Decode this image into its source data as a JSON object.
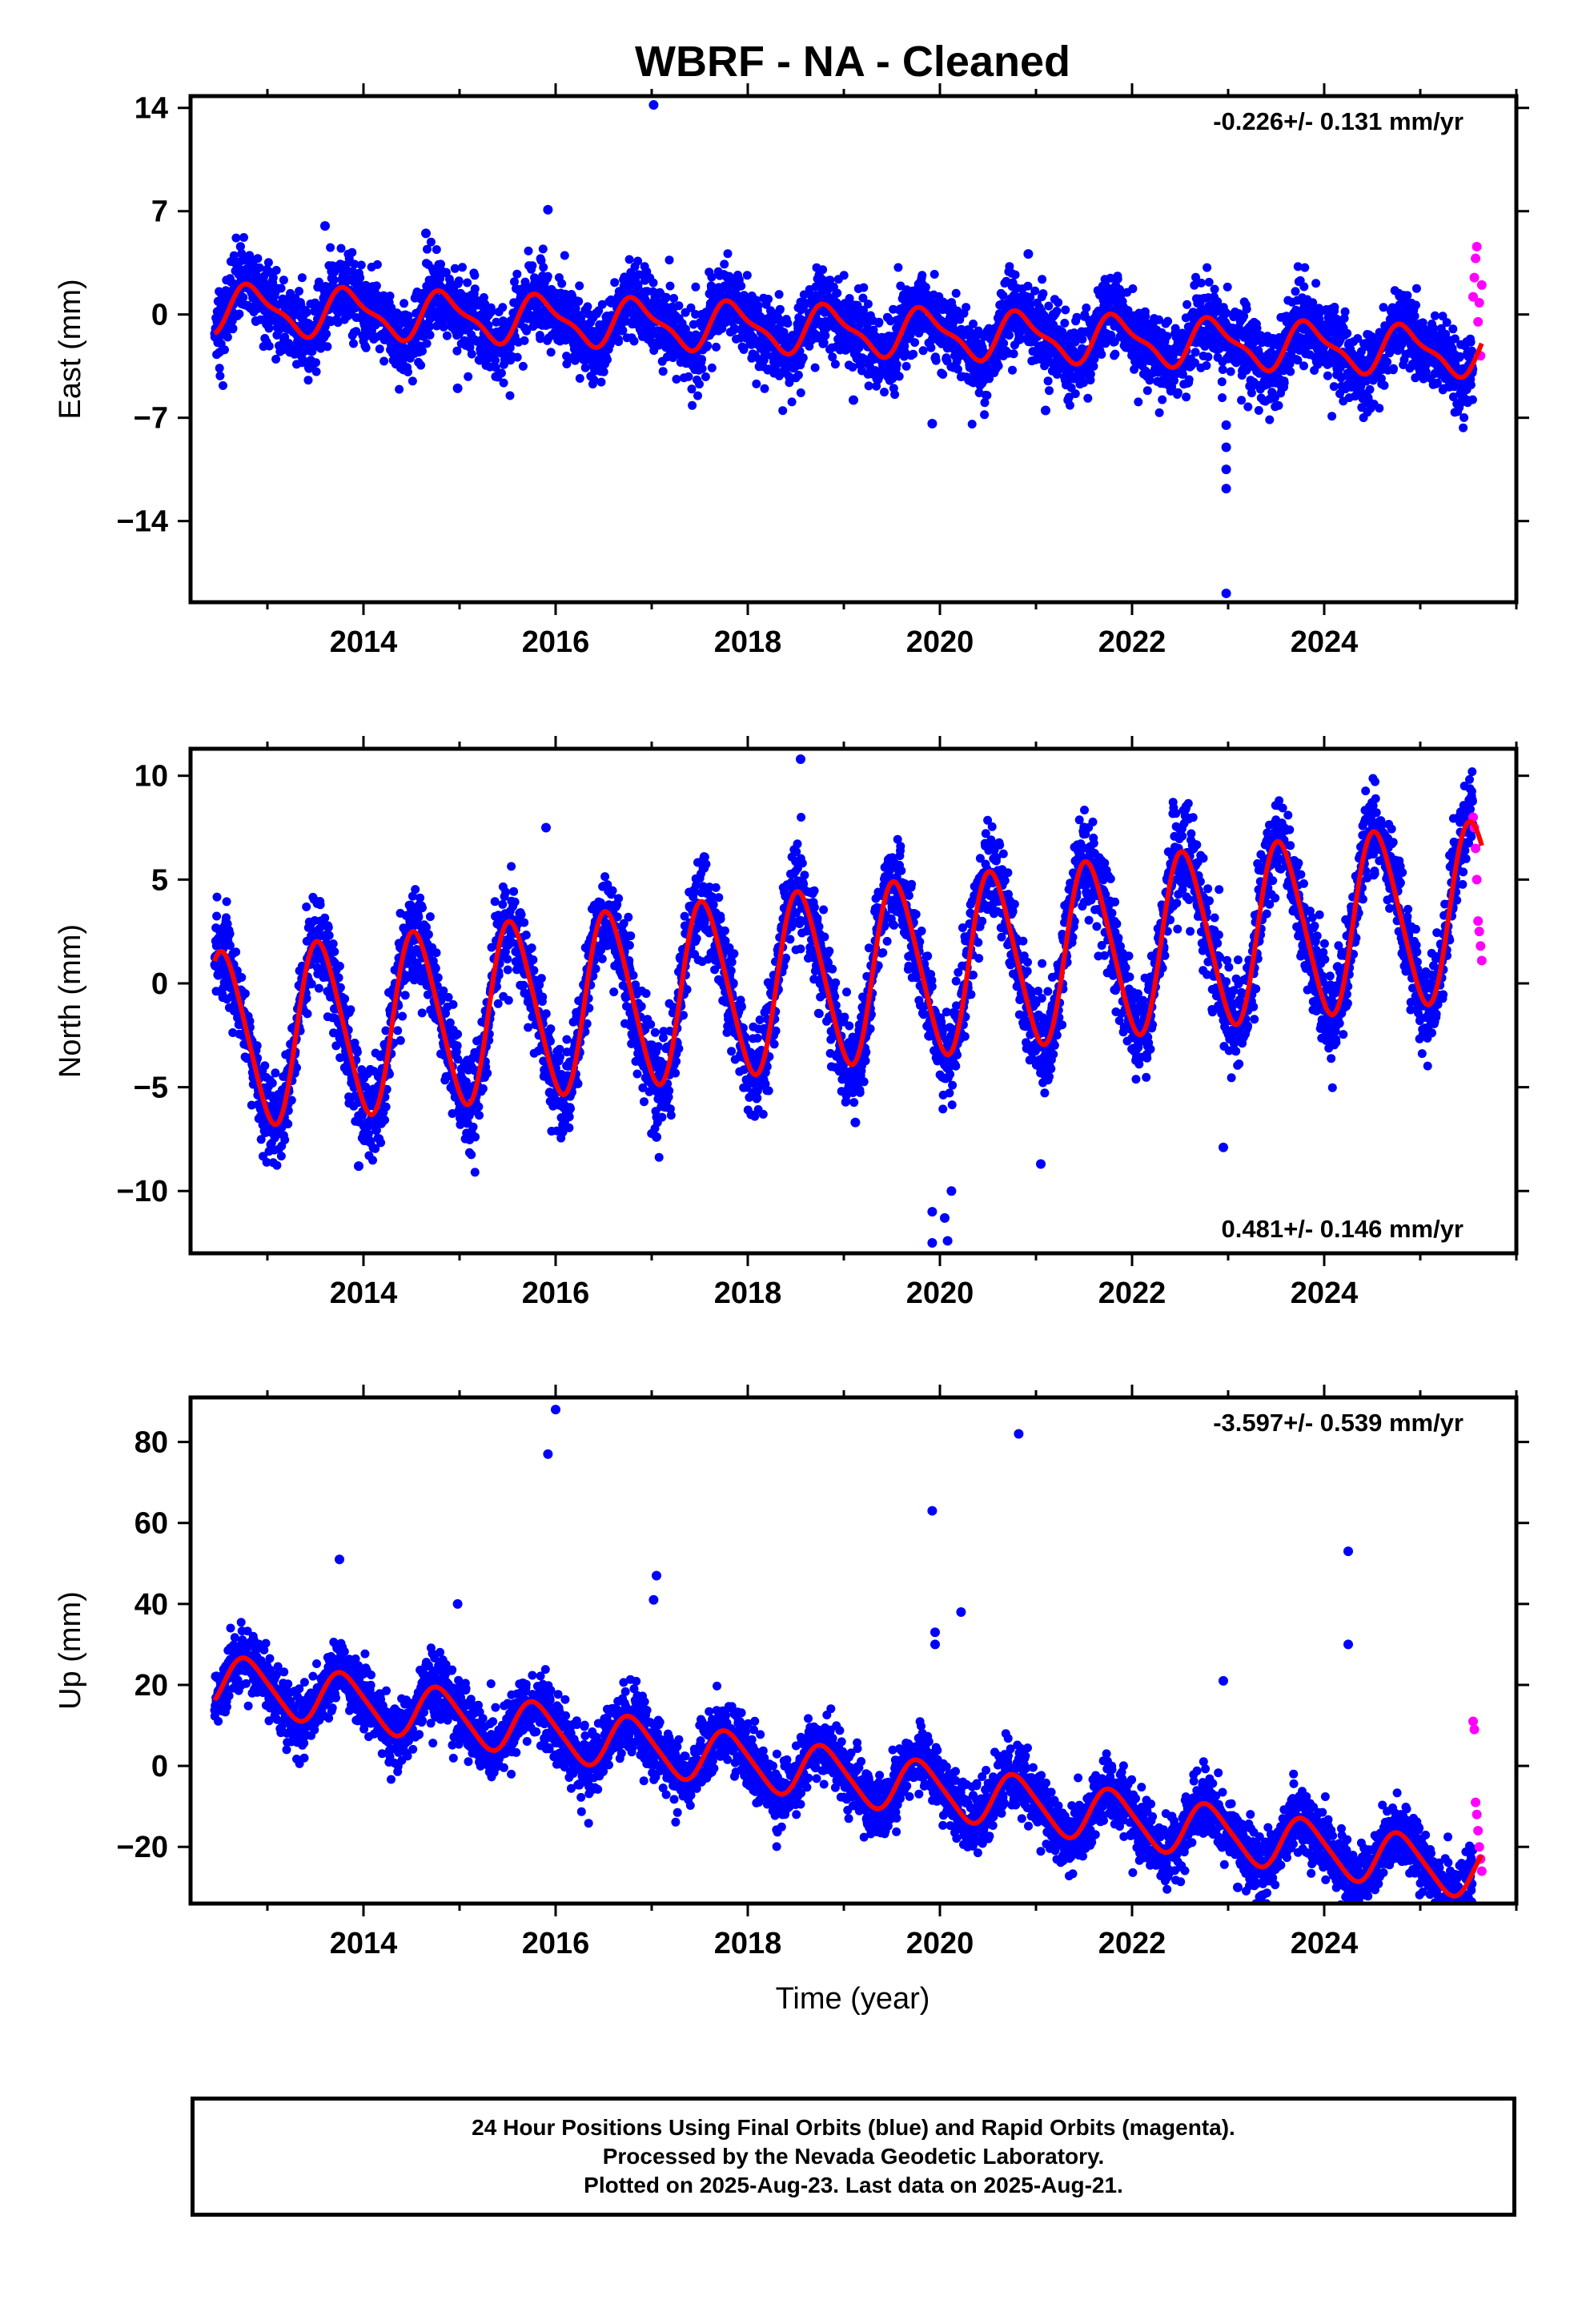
{
  "title": "WBRF  - NA - Cleaned",
  "x_axis_label": "Time (year)",
  "footer": {
    "line1": "24 Hour Positions Using Final Orbits (blue) and Rapid Orbits (magenta).",
    "line2": "Processed by the Nevada Geodetic Laboratory.",
    "line3": "Plotted on 2025-Aug-23. Last data on 2025-Aug-21."
  },
  "colors": {
    "final": "#0000ff",
    "rapid": "#ff00ff",
    "fit": "#ff0000",
    "frame": "#000000"
  },
  "chart_data": [
    {
      "type": "scatter",
      "component": "East",
      "ylabel": "East (mm)",
      "rate_label": "-0.226+/- 0.131 mm/yr",
      "rate_position": "top-right",
      "xlim": [
        2012.2,
        2026.0
      ],
      "ylim": [
        -19.5,
        14.8
      ],
      "xticks": [
        2014,
        2016,
        2018,
        2020,
        2022,
        2024
      ],
      "yticks": [
        14,
        7,
        0,
        -7,
        -14
      ],
      "ytick_labels": [
        "14",
        "7",
        "0",
        "−7",
        "−14"
      ],
      "data_start": 2012.45,
      "rapid_start": 2025.55,
      "data_end": 2025.64,
      "fit": {
        "value_at_start": 0.4,
        "rate_mm_yr": -0.226,
        "amp_annual": 1.5,
        "phase_annual": 0.6,
        "amp_semiannual": 0.5
      },
      "scatter_sd": 1.3,
      "rapid_values": [
        1.2,
        2.5,
        3.8,
        4.6,
        -0.5,
        0.8,
        -2.8,
        2.0
      ],
      "outliers": [
        {
          "x": 2017.02,
          "y": 14.2
        },
        {
          "x": 2015.92,
          "y": 7.1
        },
        {
          "x": 2022.98,
          "y": -18.9
        },
        {
          "x": 2022.98,
          "y": -11.8
        },
        {
          "x": 2022.98,
          "y": -10.5
        },
        {
          "x": 2022.98,
          "y": -9.0
        },
        {
          "x": 2022.98,
          "y": -7.5
        },
        {
          "x": 2019.92,
          "y": -7.4
        },
        {
          "x": 2019.1,
          "y": -5.8
        },
        {
          "x": 2020.92,
          "y": 4.1
        },
        {
          "x": 2013.6,
          "y": 6.0
        },
        {
          "x": 2014.65,
          "y": 5.5
        },
        {
          "x": 2014.98,
          "y": -5.0
        },
        {
          "x": 2021.1,
          "y": -6.5
        }
      ]
    },
    {
      "type": "scatter",
      "component": "North",
      "ylabel": "North (mm)",
      "rate_label": "0.481+/- 0.146 mm/yr",
      "rate_position": "bottom-right",
      "xlim": [
        2012.2,
        2026.0
      ],
      "ylim": [
        -13.0,
        11.3
      ],
      "xticks": [
        2014,
        2016,
        2018,
        2020,
        2022,
        2024
      ],
      "yticks": [
        10,
        5,
        0,
        -5,
        -10
      ],
      "ytick_labels": [
        "10",
        "5",
        "0",
        "−5",
        "−10"
      ],
      "data_start": 2012.45,
      "rapid_start": 2025.55,
      "data_end": 2025.64,
      "fit": {
        "value_at_start": -2.8,
        "rate_mm_yr": 0.481,
        "amp_annual": 4.2,
        "phase_annual": 0.3,
        "amp_semiannual": 0.5
      },
      "scatter_sd": 1.1,
      "rapid_values": [
        8.0,
        7.5,
        6.5,
        5.0,
        3.0,
        2.5,
        1.8,
        1.1
      ],
      "outliers": [
        {
          "x": 2018.55,
          "y": 10.8
        },
        {
          "x": 2015.9,
          "y": 7.5
        },
        {
          "x": 2019.92,
          "y": -12.5
        },
        {
          "x": 2019.92,
          "y": -11.0
        },
        {
          "x": 2020.08,
          "y": -12.4
        },
        {
          "x": 2020.12,
          "y": -10.0
        },
        {
          "x": 2020.05,
          "y": -11.3
        },
        {
          "x": 2013.95,
          "y": -8.8
        },
        {
          "x": 2017.05,
          "y": -7.4
        },
        {
          "x": 2022.95,
          "y": -7.9
        },
        {
          "x": 2019.12,
          "y": -6.7
        },
        {
          "x": 2021.05,
          "y": -8.7
        }
      ]
    },
    {
      "type": "scatter",
      "component": "Up",
      "ylabel": "Up (mm)",
      "rate_label": "-3.597+/- 0.539 mm/yr",
      "rate_position": "top-right",
      "xlim": [
        2012.2,
        2026.0
      ],
      "ylim": [
        -34,
        91
      ],
      "xticks": [
        2014,
        2016,
        2018,
        2020,
        2022,
        2024
      ],
      "yticks": [
        80,
        60,
        40,
        20,
        0,
        -20
      ],
      "ytick_labels": [
        "80",
        "60",
        "40",
        "20",
        "0",
        "−20"
      ],
      "data_start": 2012.45,
      "rapid_start": 2025.55,
      "data_end": 2025.64,
      "fit": {
        "value_at_start": 21,
        "rate_mm_yr": -3.597,
        "amp_annual": 6.5,
        "phase_annual": 0.55,
        "amp_semiannual": 1.0
      },
      "scatter_sd": 4.0,
      "rapid_values": [
        11,
        9,
        -9,
        -12,
        -16,
        -20,
        -23,
        -26
      ],
      "outliers": [
        {
          "x": 2016.0,
          "y": 88
        },
        {
          "x": 2015.92,
          "y": 77
        },
        {
          "x": 2020.82,
          "y": 82
        },
        {
          "x": 2019.92,
          "y": 63
        },
        {
          "x": 2024.25,
          "y": 53
        },
        {
          "x": 2024.25,
          "y": 30
        },
        {
          "x": 2013.75,
          "y": 51
        },
        {
          "x": 2017.05,
          "y": 47
        },
        {
          "x": 2017.02,
          "y": 41
        },
        {
          "x": 2014.98,
          "y": 40
        },
        {
          "x": 2020.22,
          "y": 38
        },
        {
          "x": 2019.95,
          "y": 33
        },
        {
          "x": 2019.95,
          "y": 30
        },
        {
          "x": 2022.95,
          "y": 21
        },
        {
          "x": 2023.1,
          "y": -30
        },
        {
          "x": 2023.35,
          "y": -32
        }
      ]
    }
  ]
}
